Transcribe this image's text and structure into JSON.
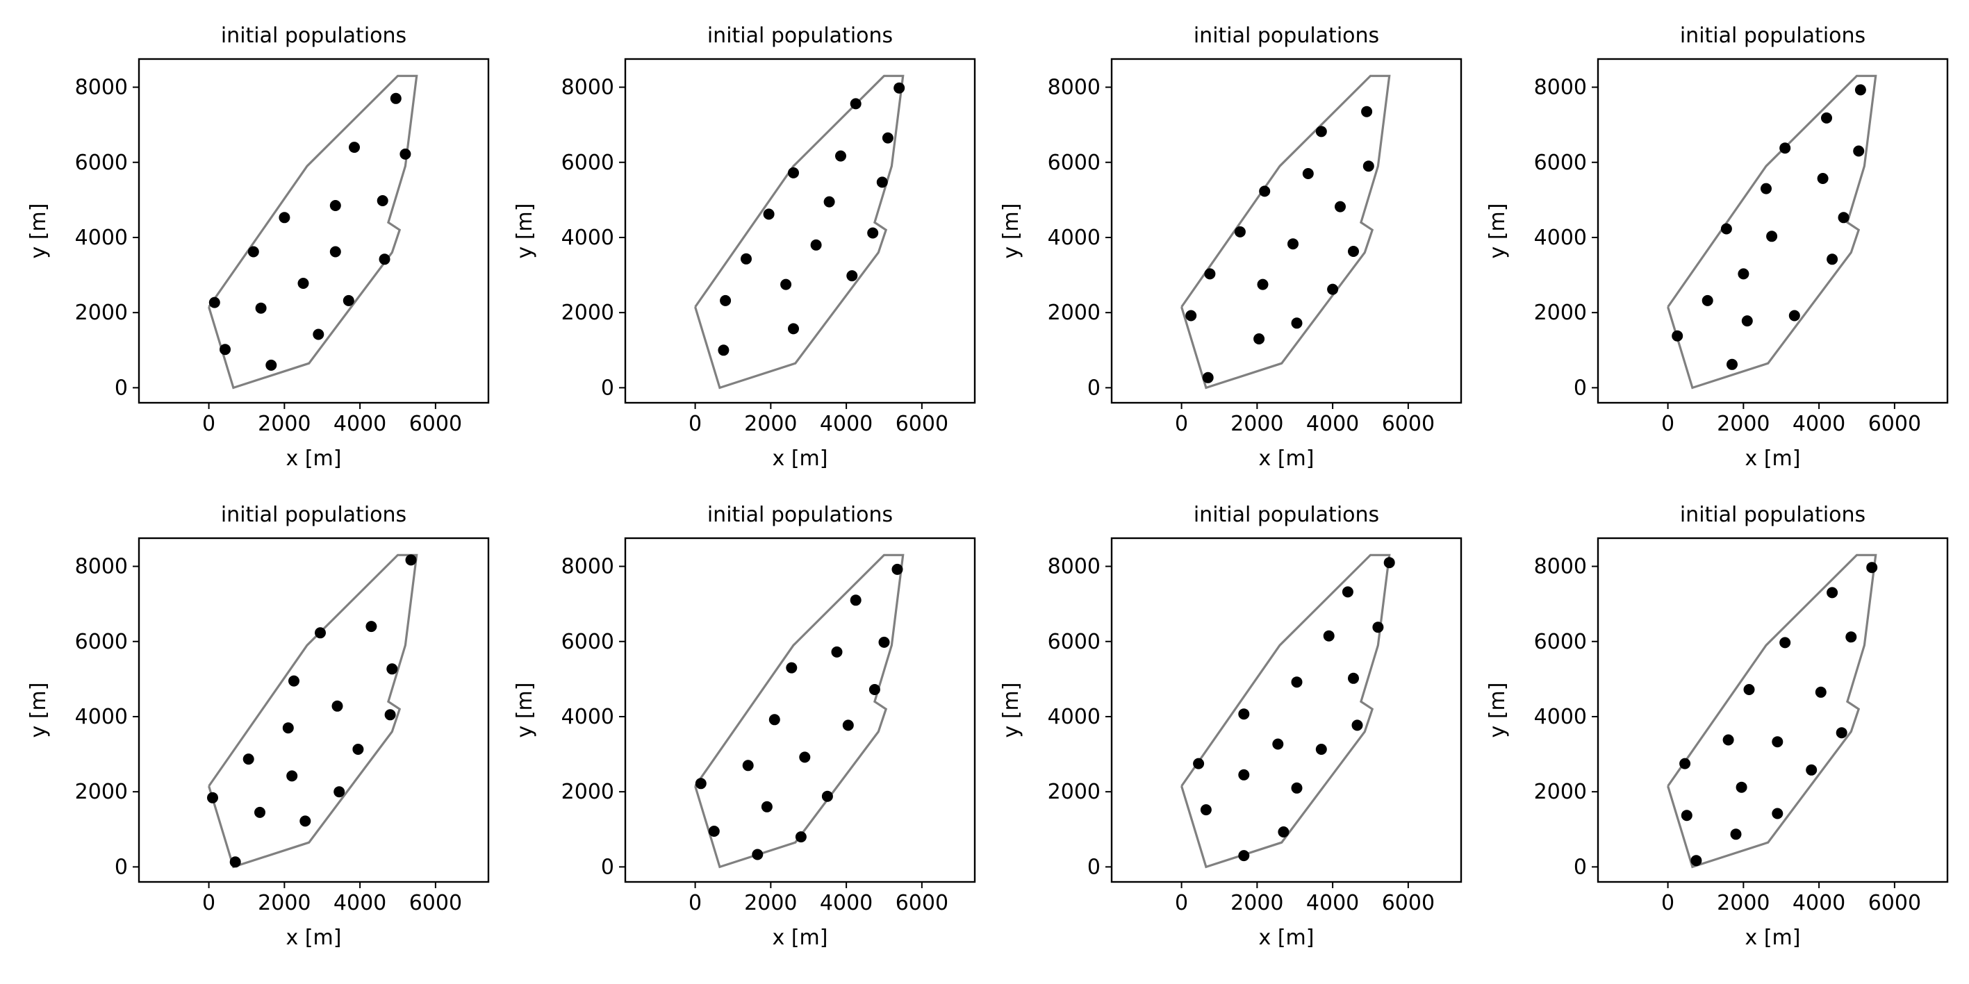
{
  "chart_data": [
    {
      "type": "scatter",
      "title": "initial populations",
      "xlabel": "x [m]",
      "ylabel": "y [m]",
      "xlim": [
        -1850,
        7400
      ],
      "ylim": [
        -400,
        8750
      ],
      "xticks": [
        0,
        2000,
        4000,
        6000
      ],
      "yticks": [
        0,
        2000,
        4000,
        6000,
        8000
      ],
      "boundary": [
        [
          0,
          2150
        ],
        [
          650,
          0
        ],
        [
          2650,
          650
        ],
        [
          4850,
          3600
        ],
        [
          5050,
          4200
        ],
        [
          4750,
          4400
        ],
        [
          5200,
          5900
        ],
        [
          5500,
          8300
        ],
        [
          5000,
          8300
        ],
        [
          2600,
          5900
        ],
        [
          0,
          2150
        ]
      ],
      "points": [
        [
          150,
          2270
        ],
        [
          430,
          1020
        ],
        [
          1650,
          600
        ],
        [
          2900,
          1420
        ],
        [
          3700,
          2320
        ],
        [
          4650,
          3420
        ],
        [
          2500,
          2780
        ],
        [
          1380,
          2120
        ],
        [
          1180,
          3620
        ],
        [
          2000,
          4530
        ],
        [
          3350,
          3620
        ],
        [
          3350,
          4850
        ],
        [
          4600,
          4980
        ],
        [
          5200,
          6220
        ],
        [
          3850,
          6400
        ],
        [
          4950,
          7700
        ]
      ]
    },
    {
      "type": "scatter",
      "title": "initial populations",
      "xlabel": "x [m]",
      "ylabel": "y [m]",
      "xlim": [
        -1850,
        7400
      ],
      "ylim": [
        -400,
        8750
      ],
      "xticks": [
        0,
        2000,
        4000,
        6000
      ],
      "yticks": [
        0,
        2000,
        4000,
        6000,
        8000
      ],
      "boundary": [
        [
          0,
          2150
        ],
        [
          650,
          0
        ],
        [
          2650,
          650
        ],
        [
          4850,
          3600
        ],
        [
          5050,
          4200
        ],
        [
          4750,
          4400
        ],
        [
          5200,
          5900
        ],
        [
          5500,
          8300
        ],
        [
          5000,
          8300
        ],
        [
          2600,
          5900
        ],
        [
          0,
          2150
        ]
      ],
      "points": [
        [
          750,
          1000
        ],
        [
          800,
          2320
        ],
        [
          1350,
          3430
        ],
        [
          1950,
          4620
        ],
        [
          2400,
          2750
        ],
        [
          2600,
          1570
        ],
        [
          2600,
          5720
        ],
        [
          3200,
          3800
        ],
        [
          3550,
          4950
        ],
        [
          3850,
          6170
        ],
        [
          4150,
          2980
        ],
        [
          4250,
          7560
        ],
        [
          4700,
          4120
        ],
        [
          4950,
          5470
        ],
        [
          5100,
          6650
        ],
        [
          5400,
          7980
        ]
      ]
    },
    {
      "type": "scatter",
      "title": "initial populations",
      "xlabel": "x [m]",
      "ylabel": "y [m]",
      "xlim": [
        -1850,
        7400
      ],
      "ylim": [
        -400,
        8750
      ],
      "xticks": [
        0,
        2000,
        4000,
        6000
      ],
      "yticks": [
        0,
        2000,
        4000,
        6000,
        8000
      ],
      "boundary": [
        [
          0,
          2150
        ],
        [
          650,
          0
        ],
        [
          2650,
          650
        ],
        [
          4850,
          3600
        ],
        [
          5050,
          4200
        ],
        [
          4750,
          4400
        ],
        [
          5200,
          5900
        ],
        [
          5500,
          8300
        ],
        [
          5000,
          8300
        ],
        [
          2600,
          5900
        ],
        [
          0,
          2150
        ]
      ],
      "points": [
        [
          250,
          1920
        ],
        [
          700,
          270
        ],
        [
          750,
          3030
        ],
        [
          1550,
          4150
        ],
        [
          2050,
          1300
        ],
        [
          2150,
          2750
        ],
        [
          2200,
          5230
        ],
        [
          2950,
          3830
        ],
        [
          3050,
          1720
        ],
        [
          3350,
          5700
        ],
        [
          3700,
          6820
        ],
        [
          4000,
          2620
        ],
        [
          4200,
          4820
        ],
        [
          4550,
          3630
        ],
        [
          4900,
          7350
        ],
        [
          4950,
          5900
        ]
      ]
    },
    {
      "type": "scatter",
      "title": "initial populations",
      "xlabel": "x [m]",
      "ylabel": "y [m]",
      "xlim": [
        -1850,
        7400
      ],
      "ylim": [
        -400,
        8750
      ],
      "xticks": [
        0,
        2000,
        4000,
        6000
      ],
      "yticks": [
        0,
        2000,
        4000,
        6000,
        8000
      ],
      "boundary": [
        [
          0,
          2150
        ],
        [
          650,
          0
        ],
        [
          2650,
          650
        ],
        [
          4850,
          3600
        ],
        [
          5050,
          4200
        ],
        [
          4750,
          4400
        ],
        [
          5200,
          5900
        ],
        [
          5500,
          8300
        ],
        [
          5000,
          8300
        ],
        [
          2600,
          5900
        ],
        [
          0,
          2150
        ]
      ],
      "points": [
        [
          250,
          1380
        ],
        [
          1050,
          2320
        ],
        [
          1550,
          4230
        ],
        [
          1700,
          620
        ],
        [
          2000,
          3030
        ],
        [
          2100,
          1780
        ],
        [
          2600,
          5300
        ],
        [
          2750,
          4030
        ],
        [
          3100,
          6380
        ],
        [
          3350,
          1920
        ],
        [
          4100,
          5570
        ],
        [
          4200,
          7180
        ],
        [
          4350,
          3420
        ],
        [
          4650,
          4530
        ],
        [
          5050,
          6300
        ],
        [
          5100,
          7930
        ]
      ]
    },
    {
      "type": "scatter",
      "title": "initial populations",
      "xlabel": "x [m]",
      "ylabel": "y [m]",
      "xlim": [
        -1850,
        7400
      ],
      "ylim": [
        -400,
        8750
      ],
      "xticks": [
        0,
        2000,
        4000,
        6000
      ],
      "yticks": [
        0,
        2000,
        4000,
        6000,
        8000
      ],
      "boundary": [
        [
          0,
          2150
        ],
        [
          650,
          0
        ],
        [
          2650,
          650
        ],
        [
          4850,
          3600
        ],
        [
          5050,
          4200
        ],
        [
          4750,
          4400
        ],
        [
          5200,
          5900
        ],
        [
          5500,
          8300
        ],
        [
          5000,
          8300
        ],
        [
          2600,
          5900
        ],
        [
          0,
          2150
        ]
      ],
      "points": [
        [
          100,
          1840
        ],
        [
          700,
          130
        ],
        [
          1050,
          2870
        ],
        [
          1350,
          1450
        ],
        [
          2100,
          3700
        ],
        [
          2200,
          2420
        ],
        [
          2250,
          4950
        ],
        [
          2550,
          1220
        ],
        [
          2950,
          6230
        ],
        [
          3400,
          4280
        ],
        [
          3450,
          2000
        ],
        [
          3950,
          3130
        ],
        [
          4300,
          6400
        ],
        [
          4800,
          4050
        ],
        [
          4850,
          5270
        ],
        [
          5350,
          8170
        ]
      ]
    },
    {
      "type": "scatter",
      "title": "initial populations",
      "xlabel": "x [m]",
      "ylabel": "y [m]",
      "xlim": [
        -1850,
        7400
      ],
      "ylim": [
        -400,
        8750
      ],
      "xticks": [
        0,
        2000,
        4000,
        6000
      ],
      "yticks": [
        0,
        2000,
        4000,
        6000,
        8000
      ],
      "boundary": [
        [
          0,
          2150
        ],
        [
          650,
          0
        ],
        [
          2650,
          650
        ],
        [
          4850,
          3600
        ],
        [
          5050,
          4200
        ],
        [
          4750,
          4400
        ],
        [
          5200,
          5900
        ],
        [
          5500,
          8300
        ],
        [
          5000,
          8300
        ],
        [
          2600,
          5900
        ],
        [
          0,
          2150
        ]
      ],
      "points": [
        [
          150,
          2220
        ],
        [
          500,
          950
        ],
        [
          1400,
          2700
        ],
        [
          1650,
          330
        ],
        [
          1900,
          1600
        ],
        [
          2100,
          3920
        ],
        [
          2550,
          5300
        ],
        [
          2800,
          800
        ],
        [
          2900,
          2920
        ],
        [
          3500,
          1880
        ],
        [
          3750,
          5720
        ],
        [
          4050,
          3770
        ],
        [
          4250,
          7100
        ],
        [
          4750,
          4720
        ],
        [
          5000,
          5980
        ],
        [
          5350,
          7920
        ]
      ]
    },
    {
      "type": "scatter",
      "title": "initial populations",
      "xlabel": "x [m]",
      "ylabel": "y [m]",
      "xlim": [
        -1850,
        7400
      ],
      "ylim": [
        -400,
        8750
      ],
      "xticks": [
        0,
        2000,
        4000,
        6000
      ],
      "yticks": [
        0,
        2000,
        4000,
        6000,
        8000
      ],
      "boundary": [
        [
          0,
          2150
        ],
        [
          650,
          0
        ],
        [
          2650,
          650
        ],
        [
          4850,
          3600
        ],
        [
          5050,
          4200
        ],
        [
          4750,
          4400
        ],
        [
          5200,
          5900
        ],
        [
          5500,
          8300
        ],
        [
          5000,
          8300
        ],
        [
          2600,
          5900
        ],
        [
          0,
          2150
        ]
      ],
      "points": [
        [
          450,
          2750
        ],
        [
          650,
          1520
        ],
        [
          1650,
          4070
        ],
        [
          1650,
          2450
        ],
        [
          1650,
          300
        ],
        [
          2550,
          3270
        ],
        [
          2700,
          930
        ],
        [
          3050,
          4920
        ],
        [
          3050,
          2100
        ],
        [
          3700,
          3130
        ],
        [
          3900,
          6150
        ],
        [
          4400,
          7320
        ],
        [
          4550,
          5020
        ],
        [
          4650,
          3770
        ],
        [
          5200,
          6380
        ],
        [
          5500,
          8100
        ]
      ]
    },
    {
      "type": "scatter",
      "title": "initial populations",
      "xlabel": "x [m]",
      "ylabel": "y [m]",
      "xlim": [
        -1850,
        7400
      ],
      "ylim": [
        -400,
        8750
      ],
      "xticks": [
        0,
        2000,
        4000,
        6000
      ],
      "yticks": [
        0,
        2000,
        4000,
        6000,
        8000
      ],
      "boundary": [
        [
          0,
          2150
        ],
        [
          650,
          0
        ],
        [
          2650,
          650
        ],
        [
          4850,
          3600
        ],
        [
          5050,
          4200
        ],
        [
          4750,
          4400
        ],
        [
          5200,
          5900
        ],
        [
          5500,
          8300
        ],
        [
          5000,
          8300
        ],
        [
          2600,
          5900
        ],
        [
          0,
          2150
        ]
      ],
      "points": [
        [
          450,
          2750
        ],
        [
          500,
          1370
        ],
        [
          750,
          170
        ],
        [
          1600,
          3380
        ],
        [
          1800,
          870
        ],
        [
          1950,
          2120
        ],
        [
          2150,
          4720
        ],
        [
          2900,
          1420
        ],
        [
          2900,
          3330
        ],
        [
          3100,
          5970
        ],
        [
          3800,
          2580
        ],
        [
          4050,
          4650
        ],
        [
          4350,
          7300
        ],
        [
          4600,
          3570
        ],
        [
          4850,
          6120
        ],
        [
          5400,
          7970
        ]
      ]
    }
  ]
}
